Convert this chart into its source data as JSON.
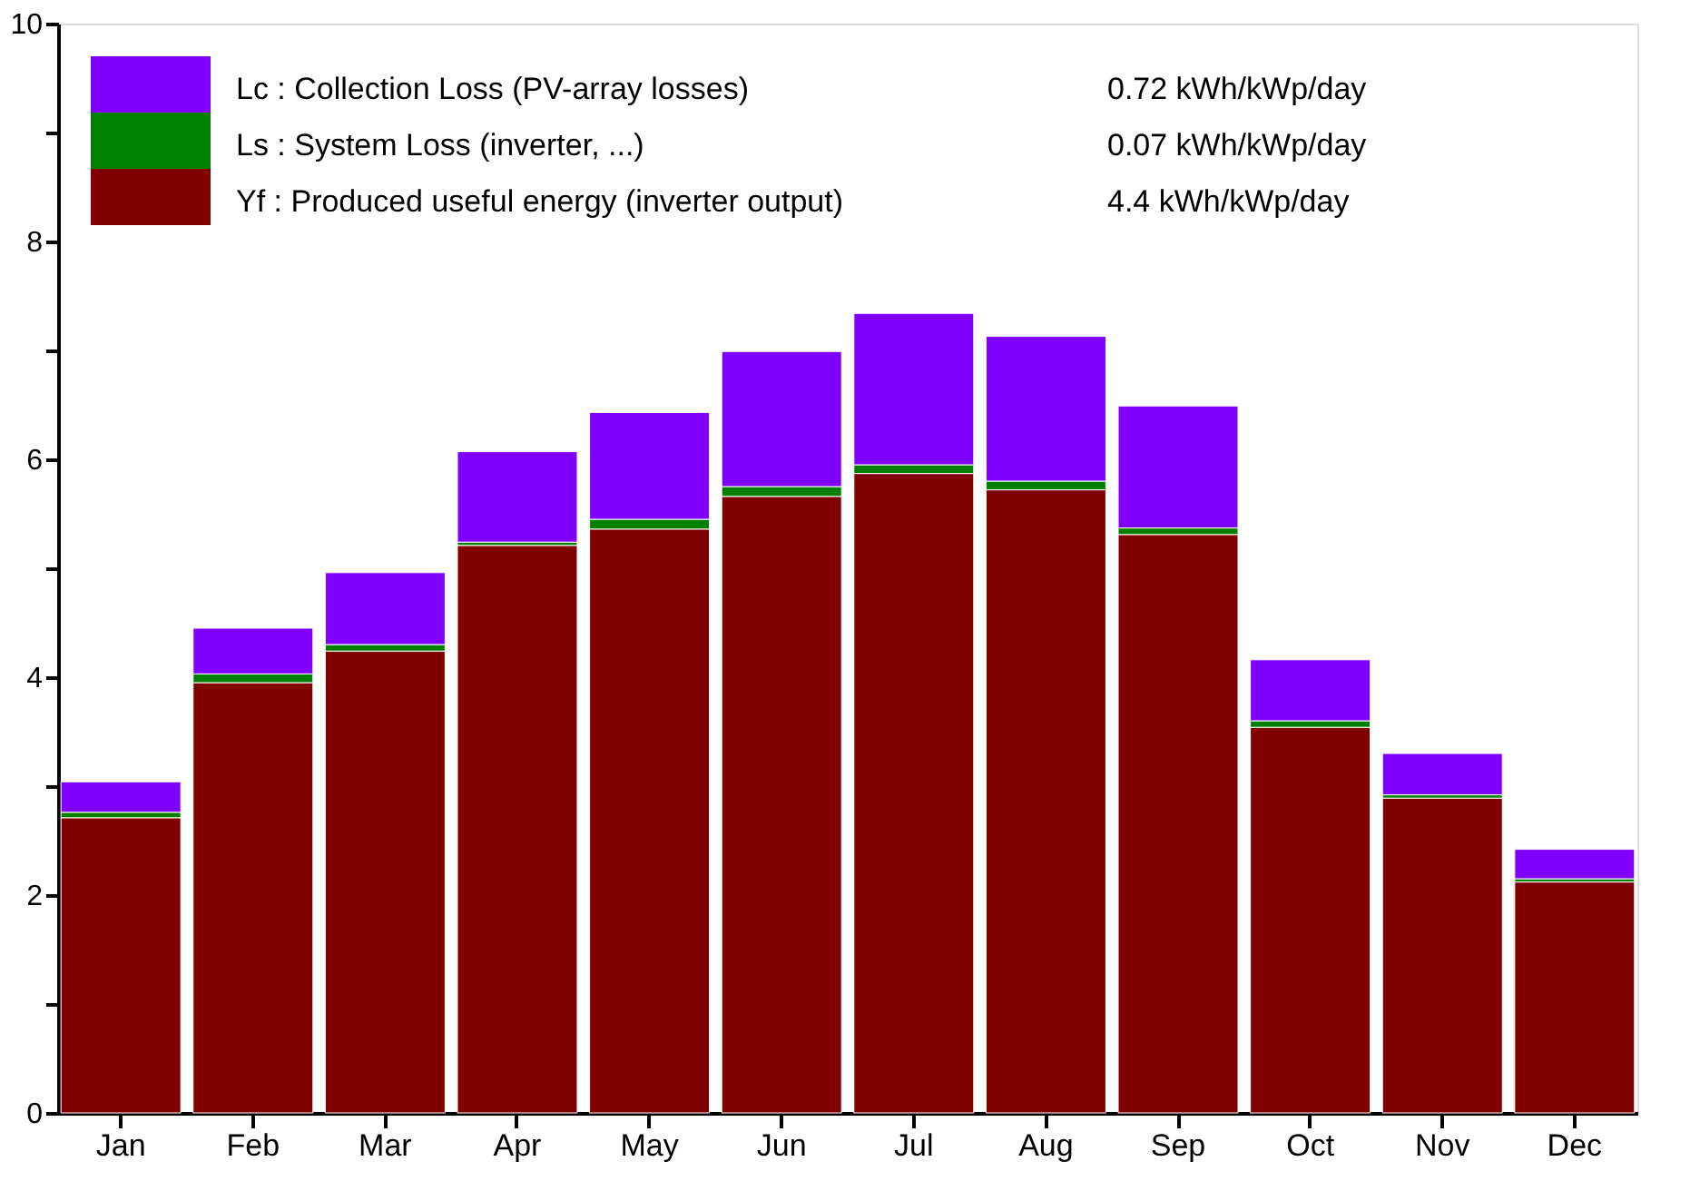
{
  "chart_data": {
    "type": "bar",
    "stacked": true,
    "categories": [
      "Jan",
      "Feb",
      "Mar",
      "Apr",
      "May",
      "Jun",
      "Jul",
      "Aug",
      "Sep",
      "Oct",
      "Nov",
      "Dec"
    ],
    "series": [
      {
        "name": "Yf : Produced useful energy  (inverter output)",
        "color": "#800000",
        "values": [
          2.71,
          3.95,
          4.24,
          5.21,
          5.36,
          5.66,
          5.87,
          5.72,
          5.31,
          3.54,
          2.89,
          2.12
        ]
      },
      {
        "name": "Ls : System Loss  (inverter, ...)",
        "color": "#008000",
        "values": [
          0.05,
          0.08,
          0.06,
          0.03,
          0.09,
          0.09,
          0.08,
          0.08,
          0.06,
          0.06,
          0.03,
          0.03
        ]
      },
      {
        "name": "Lc : Collection Loss (PV-array losses)",
        "color": "#8000ff",
        "values": [
          0.28,
          0.42,
          0.66,
          0.83,
          0.98,
          1.24,
          1.39,
          1.33,
          1.12,
          0.56,
          0.38,
          0.27
        ]
      }
    ],
    "annotations": [
      "4.4 kWh/kWp/day",
      "0.07 kWh/kWp/day",
      "0.72 kWh/kWp/day"
    ],
    "ylim": [
      0,
      10
    ],
    "yticks": [
      0,
      {
        "value": 1,
        "label": null
      },
      2,
      {
        "value": 3,
        "label": null
      },
      4,
      {
        "value": 5,
        "label": null
      },
      6,
      {
        "value": 7,
        "label": null
      },
      8,
      {
        "value": 9,
        "label": null
      },
      10
    ],
    "legend": "top left",
    "grid": false
  }
}
